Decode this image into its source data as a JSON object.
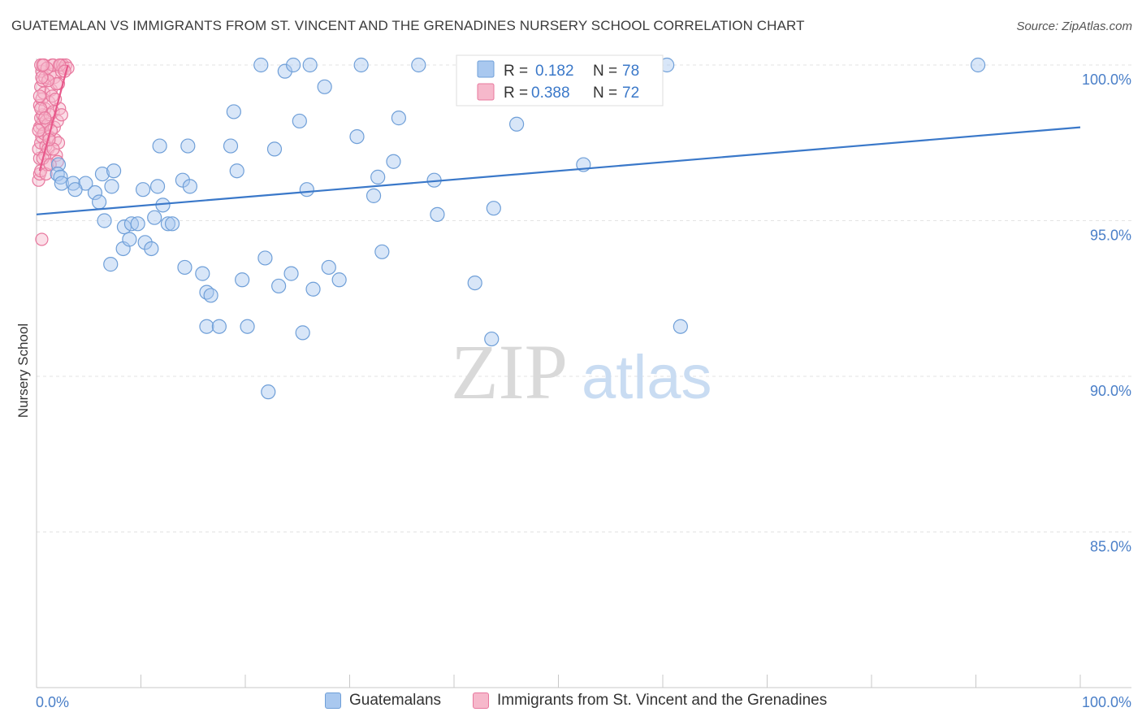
{
  "title": "GUATEMALAN VS IMMIGRANTS FROM ST. VINCENT AND THE GRENADINES NURSERY SCHOOL CORRELATION CHART",
  "source": "Source: ZipAtlas.com",
  "watermark": {
    "zip": "ZIP",
    "atlas": "atlas"
  },
  "colors": {
    "blue_fill": "#a9c8ef",
    "blue_stroke": "#6f9fd8",
    "blue_line": "#3a78c9",
    "pink_fill": "#f6b8cb",
    "pink_stroke": "#e8789e",
    "pink_line": "#e8578a",
    "axis_text": "#4a7fc8",
    "grid": "#e3e3e3",
    "stat_value": "#3a78c9"
  },
  "legend_box": {
    "rows": [
      {
        "r_label": "R =",
        "r_value": "0.182",
        "n_label": "N =",
        "n_value": "78",
        "series": "blue"
      },
      {
        "r_label": "R =",
        "r_value": "0.388",
        "n_label": "N =",
        "n_value": "72",
        "series": "pink"
      }
    ]
  },
  "bottom_legend": [
    "Guatemalans",
    "Immigrants from St. Vincent and the Grenadines"
  ],
  "chart_data": {
    "type": "scatter",
    "title": "GUATEMALAN VS IMMIGRANTS FROM ST. VINCENT AND THE GRENADINES NURSERY SCHOOL CORRELATION CHART",
    "xlabel": "",
    "ylabel": "Nursery School",
    "xlim": [
      0,
      100
    ],
    "ylim": [
      80.5,
      100.6
    ],
    "x_tick_labels": [
      "0.0%",
      "100.0%"
    ],
    "y_ticks": [
      100,
      95,
      90,
      85
    ],
    "y_tick_labels": [
      "100.0%",
      "95.0%",
      "90.0%",
      "85.0%"
    ],
    "grid": true,
    "legend_placement": "top-center",
    "series": [
      {
        "name": "Guatemalans",
        "color": "#a9c8ef",
        "trend": {
          "x": [
            0,
            100
          ],
          "y": [
            95.2,
            98.0
          ]
        },
        "points": [
          [
            2.1,
            96.8
          ],
          [
            2.0,
            96.5
          ],
          [
            2.3,
            96.4
          ],
          [
            2.4,
            96.2
          ],
          [
            3.5,
            96.2
          ],
          [
            4.7,
            96.2
          ],
          [
            3.7,
            96.0
          ],
          [
            5.6,
            95.9
          ],
          [
            6.0,
            95.6
          ],
          [
            6.3,
            96.5
          ],
          [
            7.4,
            96.6
          ],
          [
            7.2,
            96.1
          ],
          [
            6.5,
            95.0
          ],
          [
            8.3,
            94.1
          ],
          [
            8.4,
            94.8
          ],
          [
            8.9,
            94.4
          ],
          [
            9.1,
            94.9
          ],
          [
            9.7,
            94.9
          ],
          [
            10.2,
            96.0
          ],
          [
            10.4,
            94.3
          ],
          [
            11.3,
            95.1
          ],
          [
            11.6,
            96.1
          ],
          [
            11.8,
            97.4
          ],
          [
            11.0,
            94.1
          ],
          [
            12.1,
            95.5
          ],
          [
            12.6,
            94.9
          ],
          [
            13.0,
            94.9
          ],
          [
            14.0,
            96.3
          ],
          [
            14.5,
            97.4
          ],
          [
            14.7,
            96.1
          ],
          [
            14.2,
            93.5
          ],
          [
            15.9,
            93.3
          ],
          [
            16.3,
            92.7
          ],
          [
            16.7,
            92.6
          ],
          [
            16.3,
            91.6
          ],
          [
            17.5,
            91.6
          ],
          [
            18.6,
            97.4
          ],
          [
            18.9,
            98.5
          ],
          [
            19.2,
            96.6
          ],
          [
            19.7,
            93.1
          ],
          [
            20.2,
            91.6
          ],
          [
            21.5,
            100.0
          ],
          [
            21.9,
            93.8
          ],
          [
            22.2,
            89.5
          ],
          [
            22.8,
            97.3
          ],
          [
            23.2,
            92.9
          ],
          [
            23.8,
            99.8
          ],
          [
            24.4,
            93.3
          ],
          [
            24.6,
            100.0
          ],
          [
            25.2,
            98.2
          ],
          [
            25.5,
            91.4
          ],
          [
            25.9,
            96.0
          ],
          [
            26.2,
            100.0
          ],
          [
            26.5,
            92.8
          ],
          [
            27.6,
            99.3
          ],
          [
            28.0,
            93.5
          ],
          [
            29.0,
            93.1
          ],
          [
            30.7,
            97.7
          ],
          [
            31.1,
            100.0
          ],
          [
            32.3,
            95.8
          ],
          [
            32.7,
            96.4
          ],
          [
            34.2,
            96.9
          ],
          [
            34.7,
            98.3
          ],
          [
            36.6,
            100.0
          ],
          [
            38.1,
            96.3
          ],
          [
            38.4,
            95.2
          ],
          [
            43.6,
            91.2
          ],
          [
            43.8,
            95.4
          ],
          [
            46.0,
            98.1
          ],
          [
            52.4,
            96.8
          ],
          [
            58.4,
            100.0
          ],
          [
            58.9,
            100.0
          ],
          [
            60.4,
            100.0
          ],
          [
            61.7,
            91.6
          ],
          [
            90.2,
            100.0
          ],
          [
            7.1,
            93.6
          ],
          [
            33.1,
            94.0
          ],
          [
            42.0,
            93.0
          ]
        ]
      },
      {
        "name": "Immigrants from St. Vincent and the Grenadines",
        "color": "#f6b8cb",
        "trend": {
          "x": [
            0.3,
            3.0
          ],
          "y": [
            96.6,
            100.0
          ]
        },
        "points": [
          [
            0.2,
            96.3
          ],
          [
            0.3,
            96.5
          ],
          [
            0.4,
            96.6
          ],
          [
            0.3,
            97.0
          ],
          [
            0.2,
            97.3
          ],
          [
            0.4,
            97.5
          ],
          [
            0.5,
            97.7
          ],
          [
            0.3,
            98.0
          ],
          [
            0.5,
            98.1
          ],
          [
            0.4,
            98.3
          ],
          [
            0.6,
            98.4
          ],
          [
            0.3,
            98.7
          ],
          [
            0.5,
            98.9
          ],
          [
            0.4,
            99.3
          ],
          [
            0.6,
            99.5
          ],
          [
            0.5,
            99.8
          ],
          [
            0.4,
            100.0
          ],
          [
            0.7,
            100.0
          ],
          [
            0.8,
            99.6
          ],
          [
            0.7,
            99.1
          ],
          [
            0.8,
            98.6
          ],
          [
            0.9,
            98.2
          ],
          [
            0.7,
            97.8
          ],
          [
            0.9,
            97.4
          ],
          [
            0.8,
            97.1
          ],
          [
            1.0,
            96.8
          ],
          [
            1.1,
            97.3
          ],
          [
            1.2,
            97.7
          ],
          [
            1.1,
            98.1
          ],
          [
            1.3,
            98.4
          ],
          [
            1.2,
            98.8
          ],
          [
            1.4,
            99.2
          ],
          [
            1.3,
            99.7
          ],
          [
            1.5,
            100.0
          ],
          [
            1.6,
            100.0
          ],
          [
            1.7,
            99.6
          ],
          [
            1.5,
            99.0
          ],
          [
            1.6,
            98.5
          ],
          [
            1.7,
            98.0
          ],
          [
            1.8,
            97.6
          ],
          [
            1.9,
            97.1
          ],
          [
            2.0,
            96.9
          ],
          [
            2.1,
            97.5
          ],
          [
            2.0,
            98.2
          ],
          [
            2.2,
            98.6
          ],
          [
            2.1,
            99.4
          ],
          [
            2.3,
            100.0
          ],
          [
            2.5,
            100.0
          ],
          [
            2.4,
            99.8
          ],
          [
            2.6,
            99.9
          ],
          [
            2.8,
            100.0
          ],
          [
            3.0,
            99.9
          ],
          [
            0.5,
            94.4
          ],
          [
            0.2,
            97.9
          ],
          [
            0.6,
            97.0
          ],
          [
            1.0,
            99.9
          ],
          [
            1.4,
            97.9
          ],
          [
            1.8,
            98.9
          ],
          [
            2.2,
            100.0
          ],
          [
            2.7,
            99.8
          ],
          [
            0.3,
            99.0
          ],
          [
            0.9,
            96.5
          ],
          [
            1.3,
            96.8
          ],
          [
            0.6,
            100.0
          ],
          [
            1.9,
            99.4
          ],
          [
            2.4,
            98.4
          ],
          [
            0.4,
            98.6
          ],
          [
            1.1,
            99.5
          ],
          [
            1.6,
            97.3
          ],
          [
            0.8,
            98.3
          ],
          [
            1.2,
            97.6
          ],
          [
            0.5,
            99.6
          ]
        ]
      }
    ]
  }
}
